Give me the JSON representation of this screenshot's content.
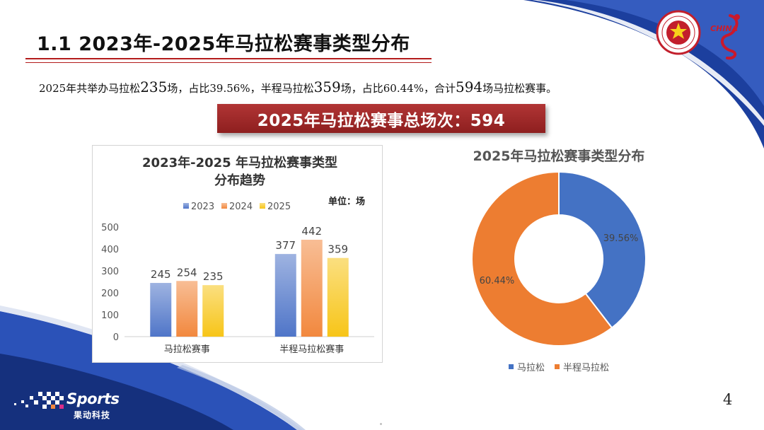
{
  "header": {
    "title": "1.1 2023年-2025年马拉松赛事类型分布"
  },
  "summary": {
    "prefix": "2025年共举办马拉松",
    "marathon_count": "235",
    "mid1": "场，占比39.56%，半程马拉松",
    "half_count": "359",
    "mid2": "场，占比60.44%，合计",
    "total_count": "594",
    "suffix": "场马拉松赛事。"
  },
  "banner": {
    "text": "2025年马拉松赛事总场次：594"
  },
  "colors": {
    "series_2023": "#4f75c8",
    "series_2024": "#f2883e",
    "series_2025": "#f7c518",
    "pie_marathon": "#4472c4",
    "pie_half": "#ed7d31",
    "title_rule": "#b31b1b",
    "banner_bg": "#a02a2a",
    "deco_blue": "#1c3f9e"
  },
  "chart_data": [
    {
      "type": "bar",
      "title_line1": "2023年-2025 年马拉松赛事类型",
      "title_line2": "分布趋势",
      "unit_label": "单位：场",
      "categories": [
        "马拉松赛事",
        "半程马拉松赛事"
      ],
      "series": [
        {
          "name": "2023",
          "values": [
            245,
            377
          ]
        },
        {
          "name": "2024",
          "values": [
            254,
            442
          ]
        },
        {
          "name": "2025",
          "values": [
            235,
            359
          ]
        }
      ],
      "ylim": [
        0,
        500
      ],
      "yticks": [
        "0",
        "100",
        "200",
        "300",
        "400",
        "500"
      ],
      "grid": false,
      "legend": "top"
    },
    {
      "type": "pie",
      "title": "2025年马拉松赛事类型分布",
      "donut": true,
      "slices": [
        {
          "name": "马拉松",
          "value": 39.56,
          "label": "39.56%"
        },
        {
          "name": "半程马拉松",
          "value": 60.44,
          "label": "60.44%"
        }
      ],
      "legend": "bottom"
    }
  ],
  "footer": {
    "logo_text": "Sports",
    "logo_sub": "果动科技",
    "page_number": "4"
  },
  "logos": {
    "association_icon": "athletics-association-seal-icon",
    "china_icon": "china-running-icon",
    "china_text": "CHINA"
  }
}
